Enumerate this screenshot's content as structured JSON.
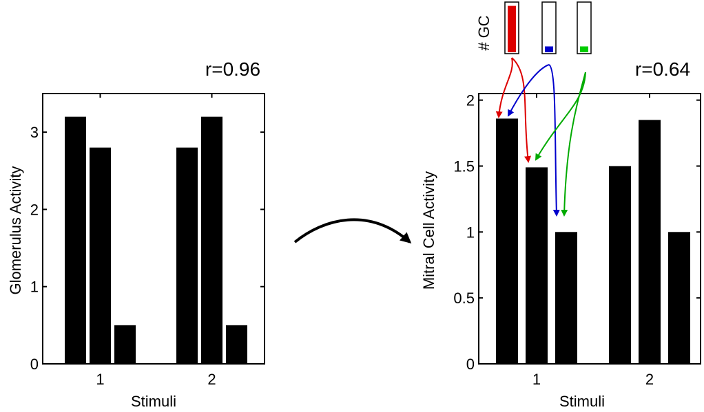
{
  "chart_data": [
    {
      "type": "bar",
      "categories": [
        "1",
        "2"
      ],
      "series": [
        {
          "values": [
            3.2,
            2.8
          ]
        },
        {
          "values": [
            2.8,
            3.2
          ]
        },
        {
          "values": [
            0.5,
            0.5
          ]
        }
      ],
      "annotation": "r=0.96",
      "ylabel": "Glomerulus Activity",
      "xlabel": "Stimuli",
      "ylim": [
        0,
        3.5
      ],
      "yticks": [
        "0",
        "1",
        "2",
        "3"
      ],
      "bar_color": "#000000"
    },
    {
      "type": "bar",
      "categories": [
        "1",
        "2"
      ],
      "series": [
        {
          "values": [
            1.86,
            1.5
          ]
        },
        {
          "values": [
            1.49,
            1.85
          ]
        },
        {
          "values": [
            1.0,
            1.0
          ]
        }
      ],
      "annotation": "r=0.64",
      "ylabel": "Mitral Cell Activity",
      "xlabel": "Stimuli",
      "ylim": [
        0,
        2.05
      ],
      "yticks": [
        "0",
        "0.5",
        "1",
        "1.5",
        "2"
      ],
      "bar_color": "#000000"
    }
  ],
  "gc_inset": {
    "label": "# GC",
    "levels": [
      0.95,
      0.12,
      0.12
    ],
    "colors": [
      "#dd0000",
      "#0000cc",
      "#00cc00"
    ]
  }
}
